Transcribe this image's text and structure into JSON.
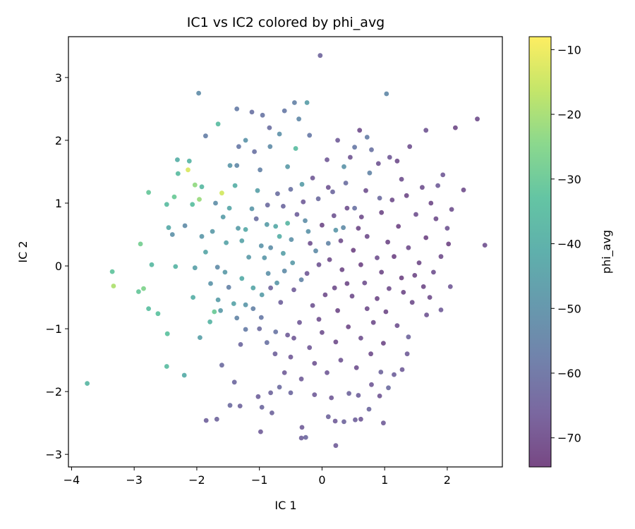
{
  "chart_data": {
    "type": "scatter",
    "title": "IC1 vs IC2 colored by phi_avg",
    "xlabel": "IC 1",
    "ylabel": "IC 2",
    "xlim": [
      -4.05,
      2.88
    ],
    "ylim": [
      -3.2,
      3.65
    ],
    "xticks": [
      -4,
      -3,
      -2,
      -1,
      0,
      1,
      2
    ],
    "yticks": [
      -3,
      -2,
      -1,
      0,
      1,
      2,
      3
    ],
    "grid": false,
    "colorbar": {
      "label": "phi_avg",
      "min": -74.5,
      "max": -8.0,
      "ticks": [
        -10,
        -20,
        -30,
        -40,
        -50,
        -60,
        -70
      ],
      "colormap": "viridis",
      "alpha": 0.7
    },
    "points": [
      {
        "x": -3.75,
        "y": -1.87,
        "c": -37
      },
      {
        "x": -3.35,
        "y": -0.09,
        "c": -32
      },
      {
        "x": -3.33,
        "y": -0.32,
        "c": -19
      },
      {
        "x": -2.93,
        "y": -0.41,
        "c": -31
      },
      {
        "x": -2.85,
        "y": -0.36,
        "c": -26
      },
      {
        "x": -2.9,
        "y": 0.35,
        "c": -28
      },
      {
        "x": -2.77,
        "y": 1.17,
        "c": -31
      },
      {
        "x": -2.72,
        "y": 0.02,
        "c": -36
      },
      {
        "x": -2.77,
        "y": -0.68,
        "c": -34
      },
      {
        "x": -2.62,
        "y": -0.76,
        "c": -33
      },
      {
        "x": -2.47,
        "y": -1.08,
        "c": -33
      },
      {
        "x": -2.48,
        "y": -1.6,
        "c": -35
      },
      {
        "x": -2.48,
        "y": 0.98,
        "c": -35
      },
      {
        "x": -2.36,
        "y": 1.1,
        "c": -30
      },
      {
        "x": -2.34,
        "y": -0.01,
        "c": -38
      },
      {
        "x": -2.45,
        "y": 0.61,
        "c": -42
      },
      {
        "x": -2.2,
        "y": -1.74,
        "c": -41
      },
      {
        "x": -2.3,
        "y": 1.47,
        "c": -35
      },
      {
        "x": -2.31,
        "y": 1.69,
        "c": -40
      },
      {
        "x": -2.14,
        "y": 1.53,
        "c": -13
      },
      {
        "x": -2.07,
        "y": 0.98,
        "c": -34
      },
      {
        "x": -2.12,
        "y": 1.67,
        "c": -38
      },
      {
        "x": -2.03,
        "y": 1.29,
        "c": -23
      },
      {
        "x": -1.96,
        "y": 1.06,
        "c": -22
      },
      {
        "x": -1.97,
        "y": 2.75,
        "c": -52
      },
      {
        "x": -1.92,
        "y": 1.26,
        "c": -36
      },
      {
        "x": -1.6,
        "y": 1.16,
        "c": -14
      },
      {
        "x": -2.06,
        "y": -0.5,
        "c": -40
      },
      {
        "x": -2.03,
        "y": -0.03,
        "c": -45
      },
      {
        "x": -1.95,
        "y": -1.14,
        "c": -45
      },
      {
        "x": -1.79,
        "y": -0.89,
        "c": -38
      },
      {
        "x": -1.72,
        "y": -0.73,
        "c": -30
      },
      {
        "x": -1.66,
        "y": 2.26,
        "c": -35
      },
      {
        "x": -1.62,
        "y": -0.71,
        "c": -47
      },
      {
        "x": -1.48,
        "y": 0.92,
        "c": -43
      },
      {
        "x": -1.39,
        "y": 1.28,
        "c": -40
      },
      {
        "x": -1.36,
        "y": 1.6,
        "c": -53
      },
      {
        "x": -1.34,
        "y": 0.6,
        "c": -46
      },
      {
        "x": -1.28,
        "y": 0.4,
        "c": -44
      },
      {
        "x": -1.22,
        "y": 0.58,
        "c": -42
      },
      {
        "x": -1.17,
        "y": 0.14,
        "c": -47
      },
      {
        "x": -1.12,
        "y": 0.91,
        "c": -48
      },
      {
        "x": -1.03,
        "y": 1.2,
        "c": -45
      },
      {
        "x": -0.97,
        "y": 0.32,
        "c": -49
      },
      {
        "x": -0.92,
        "y": 0.13,
        "c": -48
      },
      {
        "x": -0.88,
        "y": 0.66,
        "c": -46
      },
      {
        "x": -0.82,
        "y": 0.29,
        "c": -51
      },
      {
        "x": -0.74,
        "y": 0.63,
        "c": -42
      },
      {
        "x": -0.68,
        "y": 0.47,
        "c": -40
      },
      {
        "x": -0.62,
        "y": 0.2,
        "c": -45
      },
      {
        "x": -0.55,
        "y": 0.68,
        "c": -37
      },
      {
        "x": -0.49,
        "y": 0.42,
        "c": -50
      },
      {
        "x": -0.42,
        "y": 1.87,
        "c": -35
      },
      {
        "x": -0.37,
        "y": 2.34,
        "c": -53
      },
      {
        "x": -0.32,
        "y": 1.3,
        "c": -46
      },
      {
        "x": -0.27,
        "y": 0.72,
        "c": -51
      },
      {
        "x": -0.22,
        "y": 0.55,
        "c": -49
      },
      {
        "x": -0.1,
        "y": 0.24,
        "c": -52
      },
      {
        "x": 0.1,
        "y": 0.36,
        "c": -54
      },
      {
        "x": 0.22,
        "y": 0.57,
        "c": -48
      },
      {
        "x": 0.34,
        "y": 0.61,
        "c": -52
      },
      {
        "x": 0.35,
        "y": 1.58,
        "c": -49
      },
      {
        "x": 0.76,
        "y": 1.48,
        "c": -54
      },
      {
        "x": 1.03,
        "y": 2.74,
        "c": -53
      },
      {
        "x": -1.53,
        "y": 0.37,
        "c": -44
      },
      {
        "x": -1.58,
        "y": 0.78,
        "c": -46
      },
      {
        "x": -1.75,
        "y": 0.55,
        "c": -47
      },
      {
        "x": -1.86,
        "y": 0.22,
        "c": -43
      },
      {
        "x": -1.78,
        "y": -0.28,
        "c": -49
      },
      {
        "x": -1.66,
        "y": -0.54,
        "c": -46
      },
      {
        "x": -1.55,
        "y": -0.1,
        "c": -47
      },
      {
        "x": -1.41,
        "y": -0.6,
        "c": -44
      },
      {
        "x": -1.28,
        "y": -0.2,
        "c": -41
      },
      {
        "x": -1.22,
        "y": -0.62,
        "c": -48
      },
      {
        "x": -1.1,
        "y": -0.35,
        "c": -43
      },
      {
        "x": -0.96,
        "y": -0.46,
        "c": -46
      },
      {
        "x": -0.86,
        "y": -0.12,
        "c": -50
      },
      {
        "x": -0.72,
        "y": -0.27,
        "c": -48
      },
      {
        "x": -0.6,
        "y": -0.08,
        "c": -52
      },
      {
        "x": -0.47,
        "y": 0.05,
        "c": -47
      },
      {
        "x": -0.33,
        "y": -0.22,
        "c": -54
      },
      {
        "x": -1.92,
        "y": 0.47,
        "c": -48
      },
      {
        "x": -2.39,
        "y": 0.5,
        "c": -50
      },
      {
        "x": -2.19,
        "y": 0.64,
        "c": -52
      },
      {
        "x": -1.7,
        "y": 1.0,
        "c": -51
      },
      {
        "x": -1.47,
        "y": 1.6,
        "c": -48
      },
      {
        "x": -1.22,
        "y": 2.0,
        "c": -49
      },
      {
        "x": -0.99,
        "y": 1.53,
        "c": -55
      },
      {
        "x": -0.83,
        "y": 1.9,
        "c": -52
      },
      {
        "x": -0.68,
        "y": 2.1,
        "c": -50
      },
      {
        "x": -0.55,
        "y": 1.58,
        "c": -47
      },
      {
        "x": -0.2,
        "y": 2.08,
        "c": -58
      },
      {
        "x": 0.52,
        "y": 1.89,
        "c": -58
      },
      {
        "x": 0.72,
        "y": 2.05,
        "c": -56
      },
      {
        "x": 0.79,
        "y": 1.85,
        "c": -60
      },
      {
        "x": -1.36,
        "y": 2.5,
        "c": -57
      },
      {
        "x": -1.12,
        "y": 2.45,
        "c": -60
      },
      {
        "x": -0.95,
        "y": 2.4,
        "c": -59
      },
      {
        "x": -0.6,
        "y": 2.47,
        "c": -58
      },
      {
        "x": -0.44,
        "y": 2.6,
        "c": -55
      },
      {
        "x": -0.84,
        "y": 2.2,
        "c": -61
      },
      {
        "x": -0.24,
        "y": 2.6,
        "c": -46
      },
      {
        "x": -1.86,
        "y": 2.07,
        "c": -56
      },
      {
        "x": -1.08,
        "y": 1.82,
        "c": -60
      },
      {
        "x": -1.33,
        "y": 1.9,
        "c": -58
      },
      {
        "x": -0.71,
        "y": 1.15,
        "c": -61
      },
      {
        "x": -0.5,
        "y": 1.22,
        "c": -60
      },
      {
        "x": -0.06,
        "y": 1.07,
        "c": -62
      },
      {
        "x": 0.17,
        "y": 1.18,
        "c": -63
      },
      {
        "x": 0.38,
        "y": 1.32,
        "c": -61
      },
      {
        "x": 0.52,
        "y": 0.92,
        "c": -60
      },
      {
        "x": 0.92,
        "y": 1.08,
        "c": -62
      },
      {
        "x": -0.03,
        "y": 3.35,
        "c": -64
      },
      {
        "x": -1.67,
        "y": -0.02,
        "c": -52
      },
      {
        "x": -1.49,
        "y": -0.34,
        "c": -55
      },
      {
        "x": -1.36,
        "y": -0.83,
        "c": -54
      },
      {
        "x": -1.22,
        "y": -1.01,
        "c": -57
      },
      {
        "x": -1.1,
        "y": -0.68,
        "c": -55
      },
      {
        "x": -0.97,
        "y": -0.82,
        "c": -58
      },
      {
        "x": -0.88,
        "y": -1.22,
        "c": -60
      },
      {
        "x": -0.74,
        "y": -1.05,
        "c": -59
      },
      {
        "x": -1.6,
        "y": -1.58,
        "c": -62
      },
      {
        "x": -1.4,
        "y": -1.85,
        "c": -63
      },
      {
        "x": -1.31,
        "y": -2.23,
        "c": -64
      },
      {
        "x": -1.02,
        "y": -2.08,
        "c": -65
      },
      {
        "x": -0.96,
        "y": -2.25,
        "c": -63
      },
      {
        "x": -0.98,
        "y": -2.64,
        "c": -66
      },
      {
        "x": -0.82,
        "y": -2.02,
        "c": -64
      },
      {
        "x": -0.68,
        "y": -1.93,
        "c": -62
      },
      {
        "x": -0.5,
        "y": -2.02,
        "c": -63
      },
      {
        "x": -1.85,
        "y": -2.46,
        "c": -65
      },
      {
        "x": -1.68,
        "y": -2.44,
        "c": -64
      },
      {
        "x": -1.47,
        "y": -2.22,
        "c": -62
      },
      {
        "x": -0.8,
        "y": -2.34,
        "c": -64
      },
      {
        "x": -0.32,
        "y": -2.57,
        "c": -66
      },
      {
        "x": -0.33,
        "y": -2.74,
        "c": -65
      },
      {
        "x": -0.26,
        "y": -2.73,
        "c": -63
      },
      {
        "x": 0.22,
        "y": -2.86,
        "c": -66
      },
      {
        "x": 0.1,
        "y": -2.4,
        "c": -64
      },
      {
        "x": 0.21,
        "y": -2.47,
        "c": -66
      },
      {
        "x": 0.35,
        "y": -2.48,
        "c": -64
      },
      {
        "x": 0.53,
        "y": -2.45,
        "c": -65
      },
      {
        "x": 0.62,
        "y": -2.44,
        "c": -67
      },
      {
        "x": 0.75,
        "y": -2.28,
        "c": -63
      },
      {
        "x": 0.98,
        "y": -2.5,
        "c": -66
      },
      {
        "x": 0.43,
        "y": -2.03,
        "c": -64
      },
      {
        "x": 0.58,
        "y": -2.06,
        "c": -65
      },
      {
        "x": 0.79,
        "y": -1.89,
        "c": -67
      },
      {
        "x": 0.94,
        "y": -1.69,
        "c": -64
      },
      {
        "x": 1.06,
        "y": -1.94,
        "c": -62
      },
      {
        "x": 1.15,
        "y": -1.73,
        "c": -65
      },
      {
        "x": 1.36,
        "y": -1.4,
        "c": -66
      },
      {
        "x": 1.38,
        "y": -1.13,
        "c": -64
      },
      {
        "x": 1.67,
        "y": -0.78,
        "c": -68
      },
      {
        "x": 1.9,
        "y": -0.7,
        "c": -66
      },
      {
        "x": 2.05,
        "y": -0.33,
        "c": -67
      },
      {
        "x": 2.6,
        "y": 0.33,
        "c": -69
      },
      {
        "x": 2.48,
        "y": 2.34,
        "c": -70
      },
      {
        "x": 2.13,
        "y": 2.2,
        "c": -71
      },
      {
        "x": 1.66,
        "y": 2.16,
        "c": -68
      },
      {
        "x": 1.4,
        "y": 1.9,
        "c": -69
      },
      {
        "x": 1.2,
        "y": 1.67,
        "c": -70
      },
      {
        "x": 1.93,
        "y": 1.45,
        "c": -67
      },
      {
        "x": 2.26,
        "y": 1.21,
        "c": -70
      },
      {
        "x": 2.07,
        "y": 0.9,
        "c": -69
      },
      {
        "x": 2.0,
        "y": 0.6,
        "c": -68
      },
      {
        "x": 1.85,
        "y": 1.28,
        "c": -66
      },
      {
        "x": 1.74,
        "y": 1.0,
        "c": -71
      },
      {
        "x": 1.5,
        "y": 0.82,
        "c": -69
      },
      {
        "x": 0.08,
        "y": 1.69,
        "c": -67
      },
      {
        "x": 0.25,
        "y": 2.0,
        "c": -66
      },
      {
        "x": 0.45,
        "y": 1.73,
        "c": -68
      },
      {
        "x": 0.6,
        "y": 2.16,
        "c": -70
      },
      {
        "x": 0.9,
        "y": 1.63,
        "c": -68
      },
      {
        "x": 1.08,
        "y": 1.73,
        "c": -67
      },
      {
        "x": 1.27,
        "y": 1.38,
        "c": -69
      },
      {
        "x": 0.63,
        "y": 0.78,
        "c": -70
      },
      {
        "x": 0.4,
        "y": 0.92,
        "c": -69
      },
      {
        "x": 0.19,
        "y": 0.8,
        "c": -68
      },
      {
        "x": 0.0,
        "y": 0.65,
        "c": -71
      },
      {
        "x": -0.19,
        "y": 0.36,
        "c": -69
      },
      {
        "x": 0.12,
        "y": 0.1,
        "c": -70
      },
      {
        "x": 0.32,
        "y": -0.06,
        "c": -71
      },
      {
        "x": 0.5,
        "y": 0.25,
        "c": -72
      },
      {
        "x": 0.72,
        "y": 0.47,
        "c": -70
      },
      {
        "x": 0.88,
        "y": 0.13,
        "c": -69
      },
      {
        "x": 1.05,
        "y": 0.38,
        "c": -71
      },
      {
        "x": 1.22,
        "y": 0.63,
        "c": -72
      },
      {
        "x": 1.38,
        "y": 0.29,
        "c": -70
      },
      {
        "x": 1.55,
        "y": 0.05,
        "c": -71
      },
      {
        "x": 1.27,
        "y": -0.19,
        "c": -72
      },
      {
        "x": 1.07,
        "y": -0.36,
        "c": -70
      },
      {
        "x": 0.88,
        "y": -0.52,
        "c": -71
      },
      {
        "x": 0.68,
        "y": -0.27,
        "c": -69
      },
      {
        "x": 0.48,
        "y": -0.48,
        "c": -70
      },
      {
        "x": 0.25,
        "y": -0.71,
        "c": -71
      },
      {
        "x": 0.05,
        "y": -0.46,
        "c": -70
      },
      {
        "x": -0.15,
        "y": -0.63,
        "c": -68
      },
      {
        "x": -0.36,
        "y": -0.9,
        "c": -67
      },
      {
        "x": -0.55,
        "y": -1.1,
        "c": -66
      },
      {
        "x": -0.2,
        "y": -1.3,
        "c": -67
      },
      {
        "x": 0.0,
        "y": -1.06,
        "c": -69
      },
      {
        "x": 0.22,
        "y": -1.21,
        "c": -70
      },
      {
        "x": 0.42,
        "y": -0.97,
        "c": -71
      },
      {
        "x": 0.62,
        "y": -1.15,
        "c": -69
      },
      {
        "x": 0.82,
        "y": -0.9,
        "c": -70
      },
      {
        "x": 1.02,
        "y": -0.73,
        "c": -71
      },
      {
        "x": 1.2,
        "y": -0.95,
        "c": -69
      },
      {
        "x": 1.44,
        "y": -0.58,
        "c": -70
      },
      {
        "x": 1.62,
        "y": -0.33,
        "c": -71
      },
      {
        "x": 1.78,
        "y": -0.1,
        "c": -69
      },
      {
        "x": 1.66,
        "y": 0.45,
        "c": -72
      },
      {
        "x": 1.9,
        "y": 0.15,
        "c": -70
      },
      {
        "x": 0.3,
        "y": -1.5,
        "c": -68
      },
      {
        "x": 0.08,
        "y": -1.7,
        "c": -67
      },
      {
        "x": -0.12,
        "y": -1.55,
        "c": -68
      },
      {
        "x": -0.33,
        "y": -1.8,
        "c": -66
      },
      {
        "x": -0.5,
        "y": -1.45,
        "c": -67
      },
      {
        "x": 0.55,
        "y": -1.62,
        "c": -69
      },
      {
        "x": 0.78,
        "y": -1.4,
        "c": -70
      },
      {
        "x": 0.98,
        "y": -1.23,
        "c": -71
      },
      {
        "x": -0.66,
        "y": -0.58,
        "c": -65
      },
      {
        "x": -0.82,
        "y": -0.35,
        "c": -64
      },
      {
        "x": -0.45,
        "y": -0.38,
        "c": -66
      },
      {
        "x": -0.24,
        "y": -0.12,
        "c": -67
      },
      {
        "x": -0.05,
        "y": 0.02,
        "c": -68
      },
      {
        "x": -0.62,
        "y": 0.95,
        "c": -63
      },
      {
        "x": -0.4,
        "y": 0.82,
        "c": -65
      },
      {
        "x": -0.87,
        "y": 0.97,
        "c": -62
      },
      {
        "x": -1.05,
        "y": 0.75,
        "c": -61
      },
      {
        "x": -0.3,
        "y": 1.02,
        "c": -66
      },
      {
        "x": 0.1,
        "y": 1.25,
        "c": -68
      },
      {
        "x": -0.15,
        "y": 1.4,
        "c": -67
      },
      {
        "x": 0.7,
        "y": 1.2,
        "c": -69
      },
      {
        "x": 0.95,
        "y": 0.85,
        "c": -71
      },
      {
        "x": 1.12,
        "y": 1.05,
        "c": -70
      },
      {
        "x": 1.35,
        "y": 1.12,
        "c": -71
      },
      {
        "x": 1.6,
        "y": 1.25,
        "c": -69
      },
      {
        "x": 1.82,
        "y": 0.75,
        "c": -70
      },
      {
        "x": 2.02,
        "y": 0.35,
        "c": -72
      },
      {
        "x": 1.48,
        "y": -0.15,
        "c": -71
      },
      {
        "x": 1.72,
        "y": -0.5,
        "c": -70
      },
      {
        "x": 0.3,
        "y": 0.4,
        "c": -70
      },
      {
        "x": 0.62,
        "y": 0.02,
        "c": -72
      },
      {
        "x": 0.95,
        "y": -0.1,
        "c": -71
      },
      {
        "x": 1.15,
        "y": 0.15,
        "c": -72
      },
      {
        "x": 0.4,
        "y": -0.28,
        "c": -71
      },
      {
        "x": 0.2,
        "y": -0.35,
        "c": -70
      },
      {
        "x": 0.72,
        "y": -0.68,
        "c": -70
      },
      {
        "x": 1.3,
        "y": -0.42,
        "c": -71
      },
      {
        "x": 0.58,
        "y": 0.6,
        "c": -71
      },
      {
        "x": -0.05,
        "y": -0.85,
        "c": -69
      },
      {
        "x": -0.45,
        "y": -1.15,
        "c": -67
      },
      {
        "x": -0.75,
        "y": -1.4,
        "c": -65
      },
      {
        "x": -1.0,
        "y": -1.0,
        "c": -62
      },
      {
        "x": -1.3,
        "y": -1.25,
        "c": -63
      },
      {
        "x": -0.6,
        "y": -1.7,
        "c": -66
      },
      {
        "x": 0.15,
        "y": -2.1,
        "c": -67
      },
      {
        "x": -0.12,
        "y": -2.05,
        "c": -66
      },
      {
        "x": 0.92,
        "y": -2.07,
        "c": -68
      },
      {
        "x": 1.28,
        "y": -1.65,
        "c": -66
      }
    ]
  }
}
